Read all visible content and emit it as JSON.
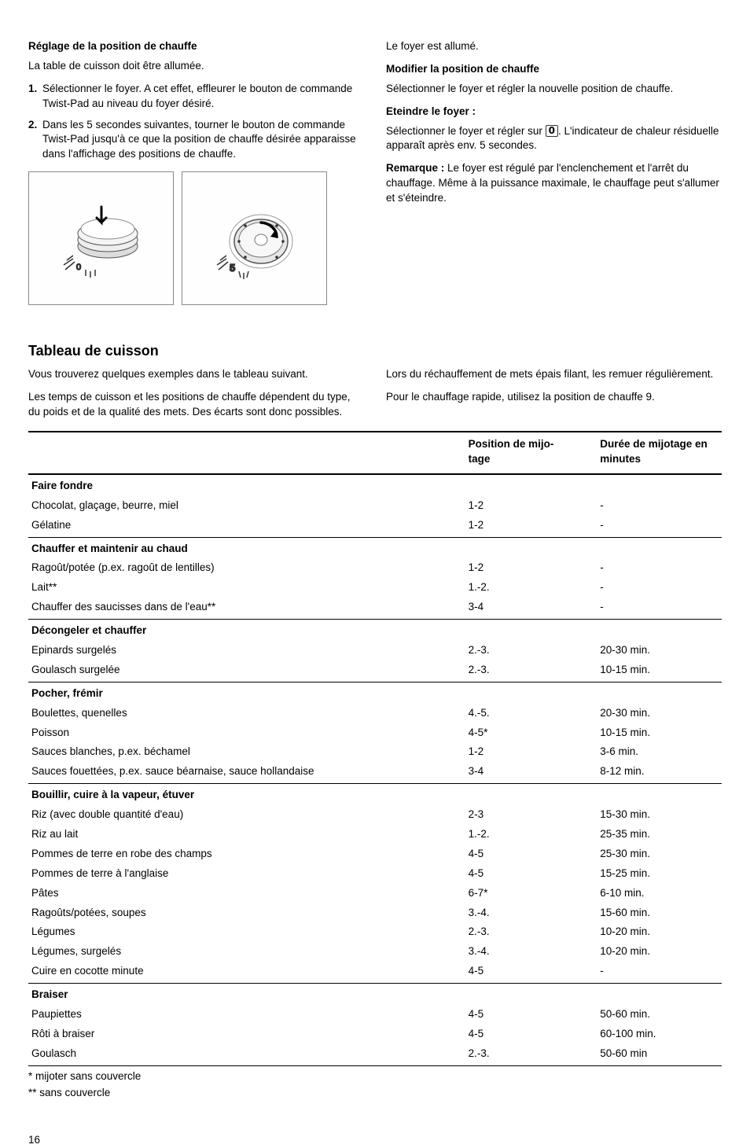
{
  "top": {
    "left": {
      "heading": "Réglage de la position de chauffe",
      "intro": "La table de cuisson doit être allumée.",
      "steps": [
        "Sélectionner le foyer. A cet effet, effleurer le bouton de commande Twist-Pad au niveau du foyer désiré.",
        "Dans les 5 secondes suivantes, tourner le bouton de commande Twist-Pad jusqu'à ce que la position de chauffe désirée apparaisse dans l'affichage des positions de chauffe."
      ]
    },
    "right": {
      "p1": "Le foyer est allumé.",
      "h2": "Modifier la position de chauffe",
      "p2": "Sélectionner le foyer et régler la nouvelle position de chauffe.",
      "h3": "Eteindre le foyer :",
      "p3a": "Sélectionner le foyer et régler sur ",
      "glyph": "0",
      "p3b": ". L'indicateur de chaleur résiduelle apparaît après env. 5 secondes.",
      "remark_label": "Remarque :",
      "remark_body": " Le foyer est régulé par l'enclenchement et l'arrêt du chauffage. Même à la puissance maximale, le chauffage peut s'allumer et s'éteindre."
    }
  },
  "section": {
    "heading": "Tableau de cuisson",
    "left_p1": "Vous trouverez quelques exemples dans le tableau suivant.",
    "left_p2": "Les temps de cuisson et les positions de chauffe dépendent du type, du poids et de la qualité des mets. Des écarts sont donc possibles.",
    "right_p1": "Lors du réchauffement de mets épais filant, les remuer régulièrement.",
    "right_p2": "Pour le chauffage rapide, utilisez la position de chauffe 9."
  },
  "table": {
    "headers": [
      "",
      "Position de mijo-\ntage",
      "Durée de mijotage en minutes"
    ],
    "groups": [
      {
        "category": "Faire fondre",
        "rows": [
          {
            "label": "Chocolat, glaçage, beurre, miel",
            "pos": "1-2",
            "dur": "-"
          },
          {
            "label": "Gélatine",
            "pos": "1-2",
            "dur": "-"
          }
        ]
      },
      {
        "category": "Chauffer et maintenir au chaud",
        "rows": [
          {
            "label": "Ragoût/potée (p.ex. ragoût de lentilles)",
            "pos": "1-2",
            "dur": "-"
          },
          {
            "label": "Lait**",
            "pos": "1.-2.",
            "dur": "-"
          },
          {
            "label": "Chauffer des saucisses dans de l'eau**",
            "pos": "3-4",
            "dur": "-"
          }
        ]
      },
      {
        "category": "Décongeler et chauffer",
        "rows": [
          {
            "label": "Epinards surgelés",
            "pos": "2.-3.",
            "dur": "20-30 min."
          },
          {
            "label": "Goulasch surgelée",
            "pos": "2.-3.",
            "dur": "10-15 min."
          }
        ]
      },
      {
        "category": "Pocher, frémir",
        "rows": [
          {
            "label": "Boulettes, quenelles",
            "pos": "4.-5.",
            "dur": "20-30 min."
          },
          {
            "label": "Poisson",
            "pos": "4-5*",
            "dur": "10-15 min."
          },
          {
            "label": "Sauces blanches, p.ex. béchamel",
            "pos": "1-2",
            "dur": "3-6 min."
          },
          {
            "label": "Sauces fouettées, p.ex. sauce béarnaise, sauce hollandaise",
            "pos": "3-4",
            "dur": "8-12 min."
          }
        ]
      },
      {
        "category": "Bouillir, cuire à la vapeur, étuver",
        "rows": [
          {
            "label": "Riz (avec double quantité d'eau)",
            "pos": "2-3",
            "dur": "15-30 min."
          },
          {
            "label": "Riz au lait",
            "pos": "1.-2.",
            "dur": "25-35 min."
          },
          {
            "label": "Pommes de terre en robe des champs",
            "pos": "4-5",
            "dur": "25-30 min."
          },
          {
            "label": "Pommes de terre à l'anglaise",
            "pos": "4-5",
            "dur": "15-25 min."
          },
          {
            "label": "Pâtes",
            "pos": "6-7*",
            "dur": "6-10 min."
          },
          {
            "label": "Ragoûts/potées, soupes",
            "pos": "3.-4.",
            "dur": "15-60 min."
          },
          {
            "label": "Légumes",
            "pos": "2.-3.",
            "dur": "10-20 min."
          },
          {
            "label": "Légumes, surgelés",
            "pos": "3.-4.",
            "dur": "10-20 min."
          },
          {
            "label": "Cuire en cocotte minute",
            "pos": "4-5",
            "dur": "-"
          }
        ]
      },
      {
        "category": "Braiser",
        "rows": [
          {
            "label": "Paupiettes",
            "pos": "4-5",
            "dur": "50-60 min."
          },
          {
            "label": "Rôti à braiser",
            "pos": "4-5",
            "dur": "60-100 min."
          },
          {
            "label": "Goulasch",
            "pos": "2.-3.",
            "dur": "50-60 min"
          }
        ]
      }
    ]
  },
  "footnotes": {
    "f1": "* mijoter sans couvercle",
    "f2": "** sans couvercle"
  },
  "page": "16"
}
